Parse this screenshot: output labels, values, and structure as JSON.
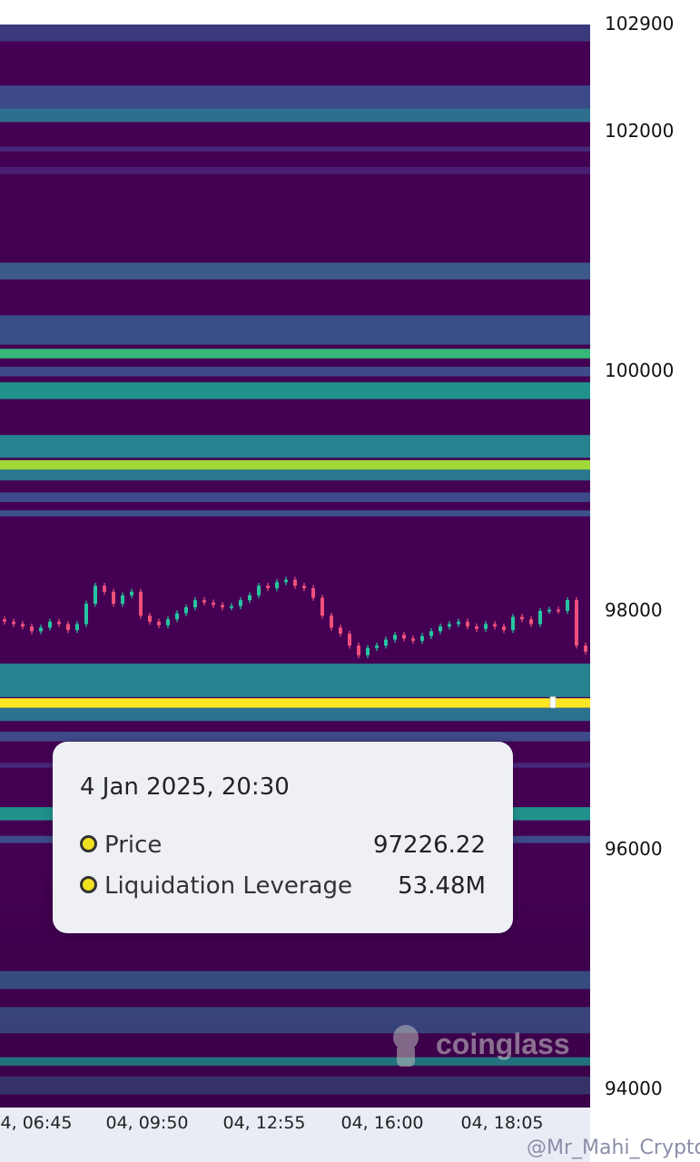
{
  "chart_data": {
    "type": "heatmap",
    "title": "",
    "ylim": [
      93840,
      102890
    ],
    "y_ticks": [
      "102900",
      "102000",
      "100000",
      "98000",
      "96000",
      "94000"
    ],
    "y_tick_values": [
      102900,
      102000,
      100000,
      98000,
      96000,
      94000
    ],
    "x_ticks": [
      "4, 06:45",
      "04, 09:50",
      "04, 12:55",
      "04, 16:00",
      "04, 18:05"
    ],
    "background_color": "#440154",
    "bands": [
      {
        "low": 102750,
        "high": 102890,
        "color": "#3a3a7c"
      },
      {
        "low": 102190,
        "high": 102380,
        "color": "#3d4a8a"
      },
      {
        "low": 102075,
        "high": 102190,
        "color": "#2e6f8e"
      },
      {
        "low": 101830,
        "high": 101870,
        "color": "#46287a"
      },
      {
        "low": 101640,
        "high": 101700,
        "color": "#4a1f73"
      },
      {
        "low": 100760,
        "high": 100900,
        "color": "#3b5a8a"
      },
      {
        "low": 100215,
        "high": 100460,
        "color": "#3a4f88"
      },
      {
        "low": 100100,
        "high": 100180,
        "color": "#35b779"
      },
      {
        "low": 99950,
        "high": 100030,
        "color": "#3e4a89"
      },
      {
        "low": 99760,
        "high": 99900,
        "color": "#21918c"
      },
      {
        "low": 99270,
        "high": 99460,
        "color": "#26828e"
      },
      {
        "low": 99170,
        "high": 99250,
        "color": "#a0da39"
      },
      {
        "low": 99080,
        "high": 99170,
        "color": "#2a788e"
      },
      {
        "low": 98900,
        "high": 98980,
        "color": "#3e4a89"
      },
      {
        "low": 98780,
        "high": 98830,
        "color": "#3b528b"
      },
      {
        "low": 97270,
        "high": 97550,
        "color": "#26828e"
      },
      {
        "low": 97180,
        "high": 97260,
        "color": "#fde725"
      },
      {
        "low": 97070,
        "high": 97180,
        "color": "#2c728e"
      },
      {
        "low": 96900,
        "high": 96980,
        "color": "#3e4a89"
      },
      {
        "low": 96680,
        "high": 96720,
        "color": "#46287a"
      },
      {
        "low": 96240,
        "high": 96350,
        "color": "#21918c"
      },
      {
        "low": 96050,
        "high": 96110,
        "color": "#3e4a89"
      },
      {
        "low": 94830,
        "high": 94980,
        "color": "#3b528b"
      },
      {
        "low": 94460,
        "high": 94680,
        "color": "#3e4a89"
      },
      {
        "low": 94190,
        "high": 94260,
        "color": "#26828e"
      },
      {
        "low": 93950,
        "high": 94100,
        "color": "#3d3a7a"
      }
    ],
    "candles": {
      "up_color": "#26c6a0",
      "down_color": "#f0507a",
      "close": [
        97900,
        97880,
        97860,
        97820,
        97850,
        97900,
        97880,
        97830,
        97880,
        98050,
        98200,
        98150,
        98050,
        98120,
        98150,
        97950,
        97900,
        97870,
        97920,
        97970,
        98020,
        98080,
        98060,
        98040,
        98020,
        98030,
        98080,
        98120,
        98200,
        98180,
        98230,
        98250,
        98200,
        98180,
        98100,
        97950,
        97850,
        97800,
        97700,
        97620,
        97680,
        97700,
        97750,
        97790,
        97760,
        97740,
        97780,
        97820,
        97860,
        97880,
        97900,
        97860,
        97840,
        97880,
        97860,
        97830,
        97940,
        97920,
        97880,
        97990,
        98000,
        97990,
        98080,
        97700,
        97650
      ]
    },
    "highlight_price": 97226.22
  },
  "tooltip": {
    "title": "4 Jan 2025, 20:30",
    "rows": [
      {
        "label": "Price",
        "value": "97226.22"
      },
      {
        "label": "Liquidation Leverage",
        "value": "53.48M"
      }
    ]
  },
  "watermark": {
    "logo": "coinglass",
    "credit": "@Mr_Mahi_Crypto"
  }
}
